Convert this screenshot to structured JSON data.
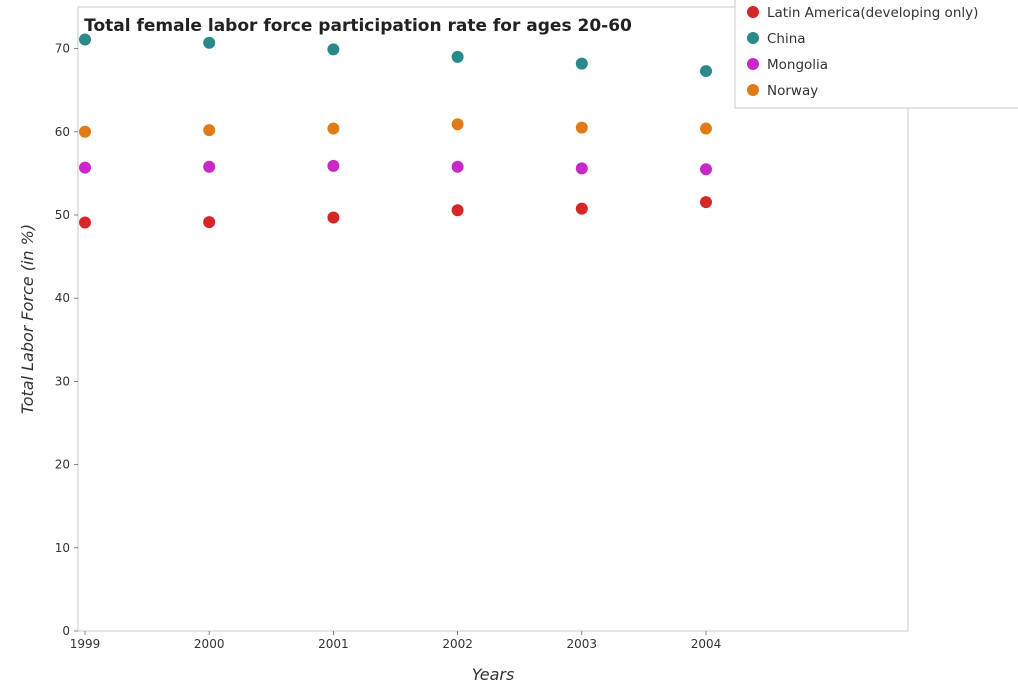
{
  "chart_data": {
    "type": "scatter",
    "title": "Total female labor force participation rate for ages 20-60",
    "xlabel": "Years",
    "ylabel": "Total Labor Force (in %)",
    "categories": [
      "1999",
      "2000",
      "2001",
      "2002",
      "2003",
      "2004"
    ],
    "ylim": [
      0,
      75
    ],
    "yticks": [
      0,
      10,
      20,
      30,
      40,
      50,
      60,
      70
    ],
    "grid": false,
    "legend_position": "top-right",
    "series": [
      {
        "name": "Latin America(developing only)",
        "color": "#d62728",
        "values": [
          49.1,
          49.15,
          49.7,
          50.57,
          50.77,
          51.55
        ]
      },
      {
        "name": "China",
        "color": "#2a8a8a",
        "values": [
          71.1,
          70.7,
          69.9,
          69.0,
          68.2,
          67.3
        ]
      },
      {
        "name": "Mongolia",
        "color": "#c728c7",
        "values": [
          55.7,
          55.8,
          55.9,
          55.8,
          55.6,
          55.5
        ]
      },
      {
        "name": "Norway",
        "color": "#e07b18",
        "values": [
          60.0,
          60.2,
          60.4,
          60.9,
          60.5,
          60.4
        ]
      }
    ]
  }
}
